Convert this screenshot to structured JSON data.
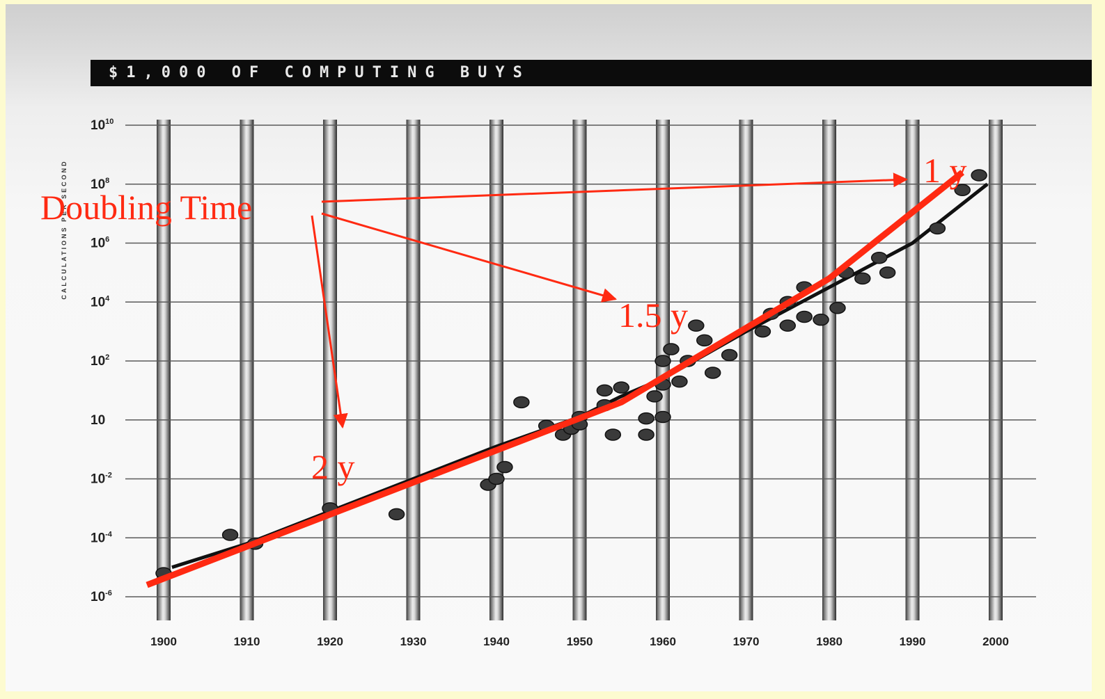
{
  "header": {
    "title": "$1,000 OF COMPUTING BUYS"
  },
  "chart_data": {
    "type": "scatter",
    "title": "$1,000 OF COMPUTING BUYS",
    "xlabel": "",
    "ylabel": "CALCULATIONS PER SECOND",
    "xlim": [
      1900,
      2000
    ],
    "ylim_log10": [
      -6,
      10
    ],
    "y_scale": "log",
    "x_tick_labels": [
      "1900",
      "1910",
      "1920",
      "1930",
      "1940",
      "1950",
      "1960",
      "1970",
      "1980",
      "1990",
      "2000"
    ],
    "y_tick_labels": [
      {
        "base": "10",
        "exp": "10",
        "log": 10
      },
      {
        "base": "10",
        "exp": "8",
        "log": 8
      },
      {
        "base": "10",
        "exp": "6",
        "log": 6
      },
      {
        "base": "10",
        "exp": "4",
        "log": 4
      },
      {
        "base": "10",
        "exp": "2",
        "log": 2
      },
      {
        "base": "10",
        "exp": "",
        "log": 0
      },
      {
        "base": "10",
        "exp": "-2",
        "log": -2
      },
      {
        "base": "10",
        "exp": "-4",
        "log": -4
      },
      {
        "base": "10",
        "exp": "-6",
        "log": -6
      }
    ],
    "points": [
      {
        "x": 1900,
        "y": -5.2
      },
      {
        "x": 1908,
        "y": -3.9
      },
      {
        "x": 1911,
        "y": -4.2
      },
      {
        "x": 1920,
        "y": -3.0
      },
      {
        "x": 1928,
        "y": -3.2
      },
      {
        "x": 1939,
        "y": -2.2
      },
      {
        "x": 1940,
        "y": -2.0
      },
      {
        "x": 1941,
        "y": -1.6
      },
      {
        "x": 1943,
        "y": 0.6
      },
      {
        "x": 1946,
        "y": -0.2
      },
      {
        "x": 1948,
        "y": -0.5
      },
      {
        "x": 1949,
        "y": -0.3
      },
      {
        "x": 1950,
        "y": 0.1
      },
      {
        "x": 1950,
        "y": -0.15
      },
      {
        "x": 1953,
        "y": 1.0
      },
      {
        "x": 1953,
        "y": 0.5
      },
      {
        "x": 1954,
        "y": -0.5
      },
      {
        "x": 1955,
        "y": 1.1
      },
      {
        "x": 1958,
        "y": -0.5
      },
      {
        "x": 1958,
        "y": 0.05
      },
      {
        "x": 1959,
        "y": 0.8
      },
      {
        "x": 1960,
        "y": 1.2
      },
      {
        "x": 1960,
        "y": 2.0
      },
      {
        "x": 1960,
        "y": 0.1
      },
      {
        "x": 1961,
        "y": 2.4
      },
      {
        "x": 1962,
        "y": 1.3
      },
      {
        "x": 1963,
        "y": 2.0
      },
      {
        "x": 1964,
        "y": 3.2
      },
      {
        "x": 1965,
        "y": 2.7
      },
      {
        "x": 1966,
        "y": 1.6
      },
      {
        "x": 1968,
        "y": 2.2
      },
      {
        "x": 1972,
        "y": 3.0
      },
      {
        "x": 1973,
        "y": 3.6
      },
      {
        "x": 1975,
        "y": 4.0
      },
      {
        "x": 1975,
        "y": 3.2
      },
      {
        "x": 1977,
        "y": 4.5
      },
      {
        "x": 1977,
        "y": 3.5
      },
      {
        "x": 1979,
        "y": 3.4
      },
      {
        "x": 1981,
        "y": 3.8
      },
      {
        "x": 1982,
        "y": 5.0
      },
      {
        "x": 1984,
        "y": 4.8
      },
      {
        "x": 1986,
        "y": 5.5
      },
      {
        "x": 1987,
        "y": 5.0
      },
      {
        "x": 1993,
        "y": 6.5
      },
      {
        "x": 1996,
        "y": 7.8
      },
      {
        "x": 1998,
        "y": 8.3
      }
    ],
    "trend_line": [
      {
        "x": 1901,
        "y": -5.0
      },
      {
        "x": 1910,
        "y": -4.2
      },
      {
        "x": 1920,
        "y": -3.1
      },
      {
        "x": 1930,
        "y": -2.0
      },
      {
        "x": 1940,
        "y": -0.9
      },
      {
        "x": 1950,
        "y": 0.1
      },
      {
        "x": 1955,
        "y": 0.8
      },
      {
        "x": 1960,
        "y": 1.4
      },
      {
        "x": 1970,
        "y": 3.0
      },
      {
        "x": 1980,
        "y": 4.5
      },
      {
        "x": 1990,
        "y": 6.0
      },
      {
        "x": 1999,
        "y": 8.0
      }
    ],
    "doubling_line": [
      {
        "x": 1898,
        "y": -5.6
      },
      {
        "x": 1955,
        "y": 0.6
      },
      {
        "x": 1980,
        "y": 4.8
      },
      {
        "x": 1996,
        "y": 8.4
      }
    ],
    "annotations": {
      "label": "Doubling Time",
      "values": [
        "2 y",
        "1.5 y",
        "1 y"
      ]
    },
    "colors": {
      "annotation": "#ff2a12",
      "frame_background": "#fdfbd0",
      "header_bar": "#0c0c0c"
    }
  }
}
